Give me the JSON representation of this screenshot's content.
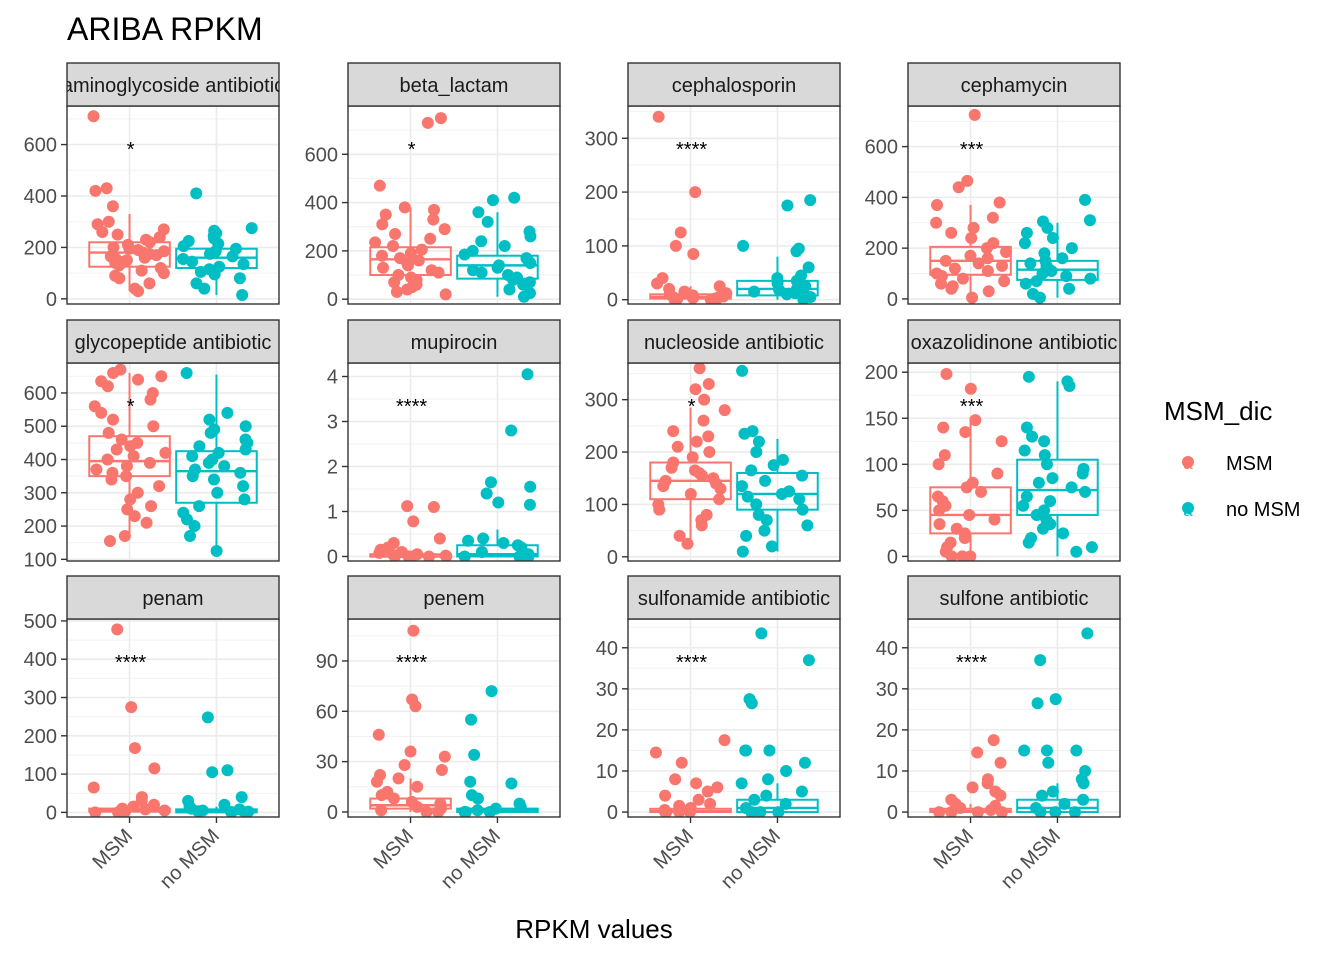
{
  "title": "ARIBA RPKM",
  "xlabel": "RPKM values",
  "legend": {
    "title": "MSM_dic",
    "entries": [
      {
        "label": "MSM",
        "color": "#F8766D"
      },
      {
        "label": "no MSM",
        "color": "#00BFC4"
      }
    ]
  },
  "chart_data": {
    "type": "box",
    "title": "ARIBA RPKM",
    "xlabel": "RPKM values",
    "ylabel": "",
    "categories": [
      "MSM",
      "no MSM"
    ],
    "legend_position": "right",
    "grid": true,
    "panels": [
      {
        "strip": "aminoglycoside antibiotic",
        "ylim": [
          -20,
          750
        ],
        "yticks": [
          0,
          200,
          400,
          600
        ],
        "signif": "*",
        "boxes": [
          {
            "q1": 125,
            "median": 180,
            "q3": 220,
            "lo": 30,
            "hi": 330
          },
          {
            "q1": 120,
            "median": 160,
            "q3": 195,
            "lo": 15,
            "hi": 270
          }
        ],
        "points": [
          [
            [
              710,
              430,
              420,
              360,
              300,
              290,
              270,
              260,
              250,
              240,
              230,
              220,
              210,
              200,
              195,
              190,
              185,
              180,
              175,
              170,
              165,
              160,
              155,
              150,
              145,
              140,
              130,
              120,
              110,
              100,
              90,
              80,
              60,
              40,
              30
            ]
          ],
          [
            [
              410,
              275,
              265,
              255,
              245,
              235,
              225,
              215,
              205,
              195,
              185,
              175,
              165,
              155,
              145,
              135,
              125,
              115,
              105,
              95,
              80,
              60,
              40,
              15
            ]
          ]
        ]
      },
      {
        "strip": "beta_lactam",
        "ylim": [
          -20,
          800
        ],
        "yticks": [
          0,
          200,
          400,
          600
        ],
        "signif": "*",
        "boxes": [
          {
            "q1": 100,
            "median": 165,
            "q3": 215,
            "lo": 20,
            "hi": 380
          },
          {
            "q1": 85,
            "median": 140,
            "q3": 180,
            "lo": 10,
            "hi": 360
          }
        ],
        "points": [
          [
            [
              750,
              730,
              470,
              380,
              370,
              350,
              330,
              310,
              290,
              270,
              250,
              235,
              220,
              205,
              190,
              180,
              170,
              160,
              150,
              140,
              130,
              120,
              110,
              100,
              90,
              80,
              70,
              60,
              50,
              40,
              30,
              20
            ]
          ],
          [
            [
              420,
              410,
              360,
              320,
              280,
              260,
              240,
              220,
              200,
              185,
              170,
              160,
              150,
              140,
              130,
              120,
              110,
              100,
              90,
              80,
              70,
              60,
              40,
              25,
              10
            ]
          ]
        ]
      },
      {
        "strip": "cephalosporin",
        "ylim": [
          -8,
          360
        ],
        "yticks": [
          0,
          100,
          200,
          300
        ],
        "signif": "****",
        "boxes": [
          {
            "q1": 2,
            "median": 5,
            "q3": 10,
            "lo": 0,
            "hi": 25
          },
          {
            "q1": 8,
            "median": 20,
            "q3": 35,
            "lo": 0,
            "hi": 80
          }
        ],
        "points": [
          [
            [
              340,
              200,
              125,
              100,
              85,
              40,
              30,
              25,
              20,
              15,
              12,
              10,
              8,
              6,
              5,
              4,
              3,
              2,
              1,
              0,
              0,
              0
            ]
          ],
          [
            [
              185,
              175,
              100,
              95,
              90,
              60,
              45,
              40,
              35,
              30,
              25,
              20,
              18,
              15,
              12,
              10,
              8,
              5,
              3,
              0
            ]
          ]
        ]
      },
      {
        "strip": "cephamycin",
        "ylim": [
          -20,
          760
        ],
        "yticks": [
          0,
          200,
          400,
          600
        ],
        "signif": "***",
        "boxes": [
          {
            "q1": 95,
            "median": 150,
            "q3": 205,
            "lo": 5,
            "hi": 370
          },
          {
            "q1": 75,
            "median": 115,
            "q3": 150,
            "lo": 5,
            "hi": 300
          }
        ],
        "points": [
          [
            [
              725,
              465,
              440,
              380,
              370,
              320,
              300,
              280,
              260,
              240,
              220,
              200,
              185,
              170,
              160,
              150,
              140,
              130,
              120,
              110,
              100,
              90,
              80,
              70,
              60,
              50,
              40,
              30,
              5
            ]
          ],
          [
            [
              390,
              310,
              305,
              280,
              260,
              240,
              220,
              200,
              180,
              160,
              150,
              140,
              130,
              120,
              110,
              100,
              90,
              80,
              70,
              60,
              40,
              20,
              5
            ]
          ]
        ]
      },
      {
        "strip": "glycopeptide antibiotic",
        "ylim": [
          95,
          690
        ],
        "yticks": [
          100,
          200,
          300,
          400,
          500,
          600
        ],
        "signif": "*",
        "boxes": [
          {
            "q1": 350,
            "median": 395,
            "q3": 470,
            "lo": 170,
            "hi": 660
          },
          {
            "q1": 270,
            "median": 365,
            "q3": 425,
            "lo": 130,
            "hi": 655
          }
        ],
        "points": [
          [
            [
              670,
              660,
              650,
              640,
              635,
              620,
              600,
              580,
              560,
              540,
              520,
              500,
              480,
              460,
              450,
              440,
              430,
              420,
              410,
              400,
              390,
              380,
              370,
              360,
              350,
              340,
              320,
              300,
              280,
              260,
              250,
              230,
              210,
              170,
              155
            ]
          ],
          [
            [
              660,
              540,
              520,
              500,
              490,
              480,
              460,
              450,
              440,
              430,
              420,
              410,
              400,
              390,
              380,
              370,
              360,
              350,
              340,
              320,
              300,
              280,
              260,
              240,
              220,
              200,
              170,
              125
            ]
          ]
        ]
      },
      {
        "strip": "mupirocin",
        "ylim": [
          -0.1,
          4.3
        ],
        "yticks": [
          0,
          1,
          2,
          3,
          4
        ],
        "signif": "****",
        "boxes": [
          {
            "q1": 0,
            "median": 0,
            "q3": 0.05,
            "lo": 0,
            "hi": 0.1
          },
          {
            "q1": 0,
            "median": 0.05,
            "q3": 0.25,
            "lo": 0,
            "hi": 0.6
          }
        ],
        "points": [
          [
            [
              1.12,
              1.1,
              0.78,
              0.4,
              0.3,
              0.2,
              0.15,
              0.1,
              0.08,
              0.05,
              0.03,
              0.02,
              0,
              0,
              0,
              0,
              0,
              0
            ]
          ],
          [
            [
              4.05,
              2.8,
              1.65,
              1.55,
              1.4,
              1.2,
              1.15,
              0.4,
              0.35,
              0.3,
              0.25,
              0.2,
              0.1,
              0.05,
              0,
              0,
              0,
              0
            ]
          ]
        ]
      },
      {
        "strip": "nucleoside antibiotic",
        "ylim": [
          -8,
          370
        ],
        "yticks": [
          0,
          100,
          200,
          300
        ],
        "signif": "*",
        "boxes": [
          {
            "q1": 110,
            "median": 145,
            "q3": 180,
            "lo": 30,
            "hi": 285
          },
          {
            "q1": 90,
            "median": 120,
            "q3": 160,
            "lo": 10,
            "hi": 225
          }
        ],
        "points": [
          [
            [
              360,
              330,
              320,
              300,
              280,
              260,
              240,
              230,
              220,
              210,
              200,
              190,
              180,
              170,
              165,
              160,
              155,
              150,
              145,
              140,
              135,
              130,
              120,
              110,
              100,
              90,
              80,
              70,
              60,
              40,
              25
            ]
          ],
          [
            [
              355,
              240,
              235,
              220,
              200,
              185,
              175,
              165,
              155,
              145,
              135,
              125,
              120,
              115,
              110,
              100,
              90,
              80,
              70,
              60,
              50,
              40,
              20,
              10
            ]
          ]
        ]
      },
      {
        "strip": "oxazolidinone antibiotic",
        "ylim": [
          -5,
          210
        ],
        "yticks": [
          0,
          50,
          100,
          150,
          200
        ],
        "signif": "***",
        "boxes": [
          {
            "q1": 25,
            "median": 45,
            "q3": 75,
            "lo": 0,
            "hi": 145
          },
          {
            "q1": 45,
            "median": 72,
            "q3": 105,
            "lo": 0,
            "hi": 190
          }
        ],
        "points": [
          [
            [
              198,
              182,
              148,
              140,
              135,
              125,
              110,
              100,
              90,
              80,
              75,
              70,
              65,
              60,
              55,
              50,
              45,
              40,
              35,
              30,
              25,
              20,
              15,
              10,
              5,
              0,
              0,
              0
            ]
          ],
          [
            [
              195,
              190,
              185,
              140,
              130,
              125,
              115,
              110,
              100,
              95,
              90,
              85,
              80,
              75,
              70,
              65,
              60,
              55,
              50,
              45,
              40,
              35,
              30,
              25,
              20,
              15,
              10,
              5
            ]
          ]
        ]
      },
      {
        "strip": "penam",
        "ylim": [
          -12,
          505
        ],
        "yticks": [
          0,
          100,
          200,
          300,
          400,
          500
        ],
        "signif": "****",
        "boxes": [
          {
            "q1": 2,
            "median": 5,
            "q3": 10,
            "lo": 0,
            "hi": 20
          },
          {
            "q1": 0,
            "median": 3,
            "q3": 8,
            "lo": 0,
            "hi": 15
          }
        ],
        "points": [
          [
            [
              478,
              275,
              168,
              115,
              65,
              40,
              30,
              20,
              15,
              10,
              8,
              5,
              3,
              2,
              1,
              0,
              0
            ]
          ],
          [
            [
              248,
              110,
              105,
              40,
              30,
              20,
              15,
              10,
              8,
              5,
              3,
              2,
              1,
              0,
              0
            ]
          ]
        ]
      },
      {
        "strip": "penem",
        "ylim": [
          -3,
          115
        ],
        "yticks": [
          0,
          30,
          60,
          90
        ],
        "signif": "****",
        "boxes": [
          {
            "q1": 2,
            "median": 4,
            "q3": 8,
            "lo": 0,
            "hi": 20
          },
          {
            "q1": 0,
            "median": 1,
            "q3": 2,
            "lo": 0,
            "hi": 5
          }
        ],
        "points": [
          [
            [
              108,
              67,
              63,
              46,
              36,
              33,
              28,
              25,
              22,
              20,
              18,
              15,
              12,
              10,
              8,
              6,
              5,
              3,
              2,
              1,
              0,
              0
            ]
          ],
          [
            [
              72,
              55,
              34,
              18,
              17,
              10,
              8,
              5,
              3,
              2,
              1,
              0,
              0,
              0
            ]
          ]
        ]
      },
      {
        "strip": "sulfonamide antibiotic",
        "ylim": [
          -1.2,
          47
        ],
        "yticks": [
          0,
          10,
          20,
          30,
          40
        ],
        "signif": "****",
        "boxes": [
          {
            "q1": 0,
            "median": 0.2,
            "q3": 0.8,
            "lo": 0,
            "hi": 2
          },
          {
            "q1": 0,
            "median": 1,
            "q3": 3,
            "lo": 0,
            "hi": 7
          }
        ],
        "points": [
          [
            [
              17.5,
              14.5,
              12,
              8,
              7,
              6,
              5,
              4,
              3,
              2,
              1.5,
              1,
              0.5,
              0,
              0,
              0,
              0
            ]
          ],
          [
            [
              43.5,
              37,
              27.5,
              26.5,
              15,
              15,
              15,
              12,
              10,
              8,
              7,
              5,
              4,
              3,
              2,
              1,
              0,
              0,
              0
            ]
          ]
        ]
      },
      {
        "strip": "sulfone antibiotic",
        "ylim": [
          -1.2,
          47
        ],
        "yticks": [
          0,
          10,
          20,
          30,
          40
        ],
        "signif": "****",
        "boxes": [
          {
            "q1": 0,
            "median": 0.2,
            "q3": 0.8,
            "lo": 0,
            "hi": 2
          },
          {
            "q1": 0,
            "median": 1,
            "q3": 3,
            "lo": 0,
            "hi": 7
          }
        ],
        "points": [
          [
            [
              17.5,
              14.5,
              12,
              8,
              7,
              6,
              5,
              4,
              3,
              2,
              1.5,
              1,
              0.5,
              0,
              0,
              0,
              0
            ]
          ],
          [
            [
              43.5,
              37,
              27.5,
              26.5,
              15,
              15,
              15,
              12,
              10,
              8,
              7,
              5,
              4,
              3,
              2,
              1,
              0,
              0,
              0
            ]
          ]
        ]
      }
    ]
  }
}
